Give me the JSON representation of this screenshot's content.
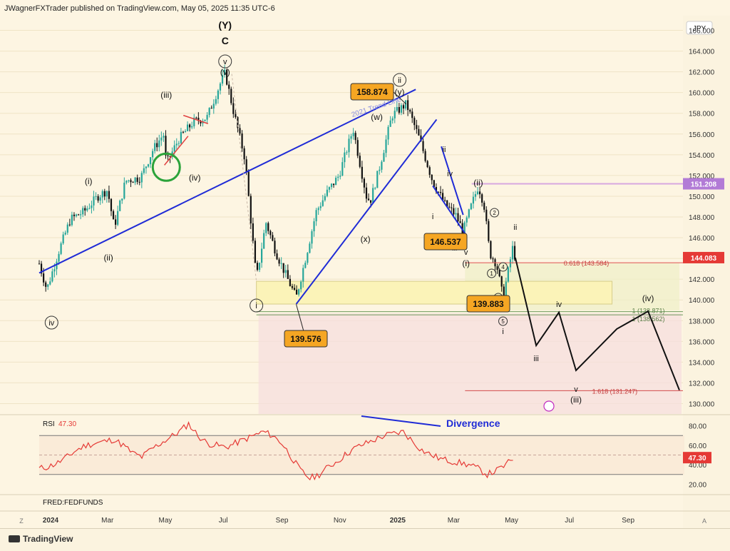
{
  "header": {
    "publisher": "JWagnerFXTrader published on TradingView.com, May 05, 2025 11:35 UTC-6"
  },
  "footer": {
    "brand": "TradingView"
  },
  "colors": {
    "bg": "#fdf5e2",
    "bull": "#26a69a",
    "bear": "#111111",
    "trend": "#1f2bd6",
    "rsi": "#e53935",
    "orange": "#f5a623",
    "target_box": "#f5dede",
    "zone": "#fbf3b8"
  },
  "chart_data": [
    {
      "type": "candlestick",
      "symbol_currency": "JPY",
      "y_ticks": [
        "166.000",
        "164.000",
        "162.000",
        "160.000",
        "158.000",
        "156.000",
        "154.000",
        "152.000",
        "150.000",
        "148.000",
        "146.000",
        "144.000",
        "142.000",
        "140.000",
        "138.000",
        "136.000",
        "134.000",
        "132.000",
        "130.000"
      ],
      "x_ticks": [
        "2024",
        "Mar",
        "May",
        "Jul",
        "Sep",
        "Nov",
        "2025",
        "Mar",
        "May",
        "Jul",
        "Sep"
      ],
      "ylim": [
        129,
        167
      ],
      "close_path": [
        [
          "2023-12-20",
          143.5
        ],
        [
          "2023-12-28",
          141.0
        ],
        [
          "2024-01-10",
          144.8
        ],
        [
          "2024-01-22",
          147.8
        ],
        [
          "2024-02-05",
          148.5
        ],
        [
          "2024-02-20",
          150.0
        ],
        [
          "2024-03-01",
          150.6
        ],
        [
          "2024-03-08",
          147.0
        ],
        [
          "2024-03-20",
          151.5
        ],
        [
          "2024-04-05",
          151.8
        ],
        [
          "2024-04-18",
          154.5
        ],
        [
          "2024-04-29",
          156.0
        ],
        [
          "2024-05-02",
          153.1
        ],
        [
          "2024-05-15",
          155.5
        ],
        [
          "2024-05-31",
          157.2
        ],
        [
          "2024-06-14",
          157.6
        ],
        [
          "2024-06-28",
          160.9
        ],
        [
          "2024-07-03",
          161.9
        ],
        [
          "2024-07-11",
          158.5
        ],
        [
          "2024-07-24",
          153.6
        ],
        [
          "2024-08-05",
          142.0
        ],
        [
          "2024-08-15",
          147.5
        ],
        [
          "2024-08-26",
          144.5
        ],
        [
          "2024-09-06",
          142.2
        ],
        [
          "2024-09-16",
          140.2
        ],
        [
          "2024-09-27",
          144.5
        ],
        [
          "2024-10-07",
          148.5
        ],
        [
          "2024-10-18",
          150.3
        ],
        [
          "2024-10-31",
          152.0
        ],
        [
          "2024-11-15",
          156.5
        ],
        [
          "2024-11-29",
          150.0
        ],
        [
          "2024-12-03",
          149.5
        ],
        [
          "2024-12-12",
          152.5
        ],
        [
          "2024-12-26",
          157.8
        ],
        [
          "2025-01-10",
          158.9
        ],
        [
          "2025-01-24",
          155.5
        ],
        [
          "2025-02-07",
          151.4
        ],
        [
          "2025-02-20",
          149.2
        ],
        [
          "2025-03-03",
          148.2
        ],
        [
          "2025-03-11",
          146.6
        ],
        [
          "2025-03-20",
          149.2
        ],
        [
          "2025-03-27",
          151.0
        ],
        [
          "2025-04-02",
          149.2
        ],
        [
          "2025-04-08",
          144.5
        ],
        [
          "2025-04-15",
          143.5
        ],
        [
          "2025-04-22",
          140.2
        ],
        [
          "2025-04-28",
          143.0
        ],
        [
          "2025-05-02",
          145.0
        ],
        [
          "2025-05-05",
          144.08
        ]
      ],
      "last_price": "144.083",
      "projection": [
        [
          "2025-05-05",
          144.08
        ],
        [
          "2025-05-27",
          135.6
        ],
        [
          "2025-06-20",
          138.8
        ],
        [
          "2025-07-08",
          133.2
        ],
        [
          "2025-08-20",
          137.2
        ],
        [
          "2025-09-22",
          138.9
        ],
        [
          "2025-10-25",
          131.3
        ]
      ],
      "levels": [
        {
          "label": "0.618 (143.584)",
          "value": 143.584
        },
        {
          "label": "1 (138.871)",
          "value": 138.871
        },
        {
          "label": "1 (138.562)",
          "value": 138.562
        },
        {
          "label": "1.618 (131.247)",
          "value": 131.247
        }
      ],
      "price_tags": [
        "158.874",
        "146.537",
        "139.883",
        "139.576"
      ],
      "right_tags": [
        "151.208",
        "144.083"
      ],
      "annotations": {
        "trend_line_label": "2021 Trend Line",
        "wave_labels": [
          "(Y)",
          "C",
          "v",
          "(v)",
          "(iii)",
          "(i)",
          "(ii)",
          "(iv)",
          "iv",
          "ii",
          "(w)",
          "(y)",
          "(x)",
          "i",
          "ii",
          "iv",
          "i",
          "iii",
          "v",
          "(i)",
          "(ii)",
          "1",
          "2",
          "3",
          "4",
          "5",
          "i",
          "ii",
          "iii",
          "iv",
          "v",
          "(iii)",
          "(iv)"
        ]
      }
    },
    {
      "type": "line",
      "name": "RSI",
      "current_value": "47.30",
      "ylim": [
        10,
        90
      ],
      "y_ticks": [
        "80.00",
        "60.00",
        "40.00",
        "20.00"
      ],
      "bands": [
        70,
        50,
        30
      ],
      "divergence_label": "Divergence",
      "values_approx": [
        36,
        38,
        42,
        48,
        55,
        60,
        62,
        64,
        66,
        60,
        52,
        48,
        56,
        62,
        68,
        74,
        82,
        70,
        62,
        60,
        58,
        62,
        66,
        70,
        74,
        70,
        62,
        48,
        34,
        26,
        30,
        38,
        44,
        52,
        58,
        62,
        66,
        70,
        72,
        74,
        64,
        55,
        50,
        46,
        44,
        42,
        40,
        36,
        30,
        34,
        40,
        48
      ]
    }
  ],
  "fred_label": "FRED:FEDFUNDS"
}
